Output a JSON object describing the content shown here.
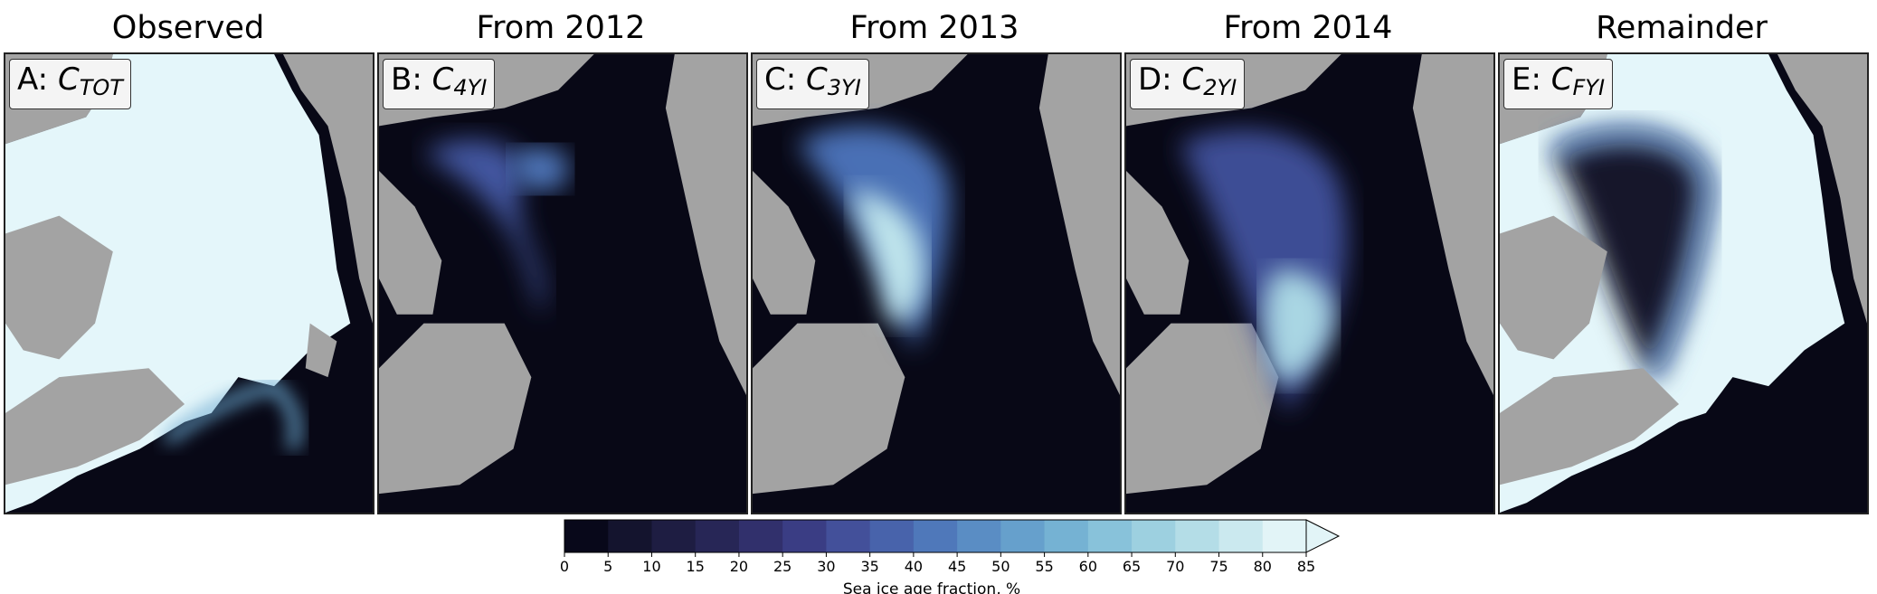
{
  "panels": [
    {
      "title": "Observed",
      "label_prefix": "A: ",
      "label_main": "C",
      "label_sub": "TOT",
      "seaColor": "#080816",
      "iceColor": "#e4f6fa",
      "landColor": "#a3a3a3"
    },
    {
      "title": "From 2012",
      "label_prefix": "B: ",
      "label_main": "C",
      "label_sub": "4YI",
      "seaColor": "#080816",
      "landColor": "#a3a3a3"
    },
    {
      "title": "From 2013",
      "label_prefix": "C: ",
      "label_main": "C",
      "label_sub": "3YI",
      "seaColor": "#080816",
      "landColor": "#a3a3a3"
    },
    {
      "title": "From 2014",
      "label_prefix": "D: ",
      "label_main": "C",
      "label_sub": "2YI",
      "seaColor": "#080816",
      "landColor": "#a3a3a3"
    },
    {
      "title": "Remainder",
      "label_prefix": "E: ",
      "label_main": "C",
      "label_sub": "FYI",
      "seaColor": "#080816",
      "iceColor": "#e4f6fa",
      "landColor": "#a3a3a3"
    }
  ],
  "chart_data": {
    "type": "heatmap",
    "colorbar": {
      "label": "Sea ice age fraction, %",
      "ticks": [
        0,
        5,
        10,
        15,
        20,
        25,
        30,
        35,
        40,
        45,
        50,
        55,
        60,
        65,
        70,
        75,
        80,
        85
      ],
      "extend": "max",
      "colors": [
        "#08081a",
        "#14142e",
        "#1e1d42",
        "#272656",
        "#31306c",
        "#3a3d84",
        "#43509a",
        "#4863ab",
        "#4f78ba",
        "#5a8dc4",
        "#66a0cc",
        "#75b2d3",
        "#88c2da",
        "#9dd0e0",
        "#b4dde7",
        "#cbe9ef",
        "#e2f4f7"
      ]
    }
  }
}
